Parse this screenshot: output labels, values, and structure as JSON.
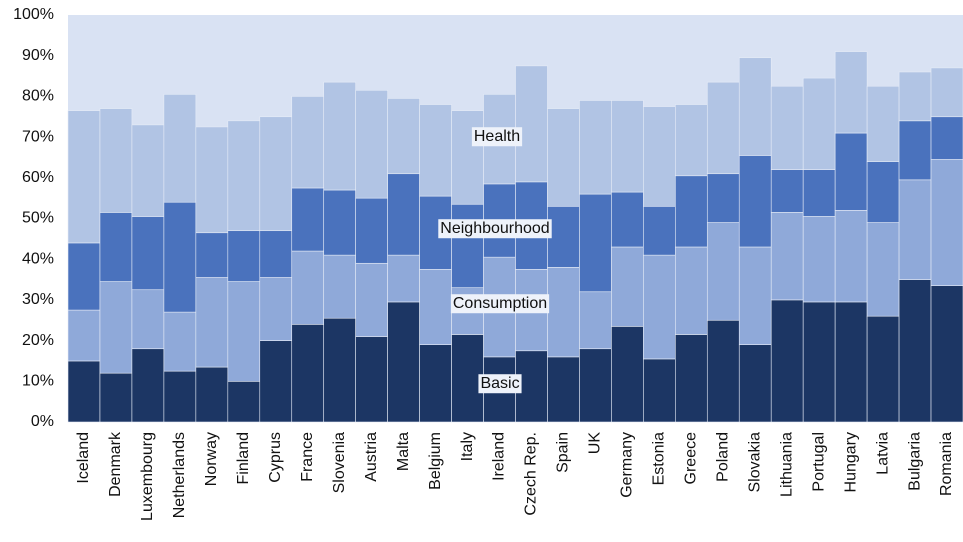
{
  "chart_data": {
    "type": "stacked_bar",
    "categories": [
      "Iceland",
      "Denmark",
      "Luxembourg",
      "Netherlands",
      "Norway",
      "Finland",
      "Cyprus",
      "France",
      "Slovenia",
      "Austria",
      "Malta",
      "Belgium",
      "Italy",
      "Ireland",
      "Czech Rep.",
      "Spain",
      "UK",
      "Germany",
      "Estonia",
      "Greece",
      "Poland",
      "Slovakia",
      "Lithuania",
      "Portugal",
      "Hungary",
      "Latvia",
      "Bulgaria",
      "Romania"
    ],
    "series": [
      {
        "name": "Basic",
        "color": "#1c3664",
        "values": [
          15,
          12,
          18,
          12.5,
          13.5,
          10,
          20,
          24,
          25.5,
          21,
          29.5,
          19,
          21.5,
          16,
          17.5,
          16,
          18,
          23.5,
          15.5,
          21.5,
          25,
          19,
          30,
          29.5,
          29.5,
          26,
          35,
          33.5
        ]
      },
      {
        "name": "Consumption",
        "color": "#8fa9d9",
        "values": [
          12.5,
          22.5,
          14.5,
          14.5,
          22,
          24.5,
          15.5,
          18,
          15.5,
          18,
          11.5,
          18.5,
          11.5,
          24.5,
          20,
          22,
          14,
          19.5,
          25.5,
          21.5,
          24,
          24,
          21.5,
          21,
          22.5,
          23,
          24.5,
          31
        ]
      },
      {
        "name": "Neighbourhood",
        "color": "#4a72bd",
        "values": [
          16.5,
          17,
          18,
          27,
          11,
          12.5,
          11.5,
          15.5,
          16,
          16,
          20,
          18,
          20.5,
          18,
          21.5,
          15,
          24,
          13.5,
          12,
          17.5,
          12,
          22.5,
          10.5,
          11.5,
          19,
          15,
          14.5,
          10.5
        ]
      },
      {
        "name": "Health",
        "color": "#b1c4e4",
        "values": [
          32.5,
          25.5,
          22.5,
          26.5,
          26,
          27,
          28,
          22.5,
          26.5,
          26.5,
          18.5,
          22.5,
          23,
          22,
          28.5,
          24,
          23,
          22.5,
          24.5,
          17.5,
          22.5,
          24,
          20.5,
          22.5,
          20,
          18.5,
          12,
          12
        ]
      }
    ],
    "ylim": [
      0,
      100
    ],
    "yticks": [
      {
        "value": 0,
        "label": "0%"
      },
      {
        "value": 10,
        "label": "10%"
      },
      {
        "value": 20,
        "label": "20%"
      },
      {
        "value": 30,
        "label": "30%"
      },
      {
        "value": 40,
        "label": "40%"
      },
      {
        "value": 50,
        "label": "50%"
      },
      {
        "value": 60,
        "label": "60%"
      },
      {
        "value": 70,
        "label": "70%"
      },
      {
        "value": 80,
        "label": "80%"
      },
      {
        "value": 90,
        "label": "90%"
      },
      {
        "value": 100,
        "label": "100%"
      }
    ],
    "grid": false
  }
}
